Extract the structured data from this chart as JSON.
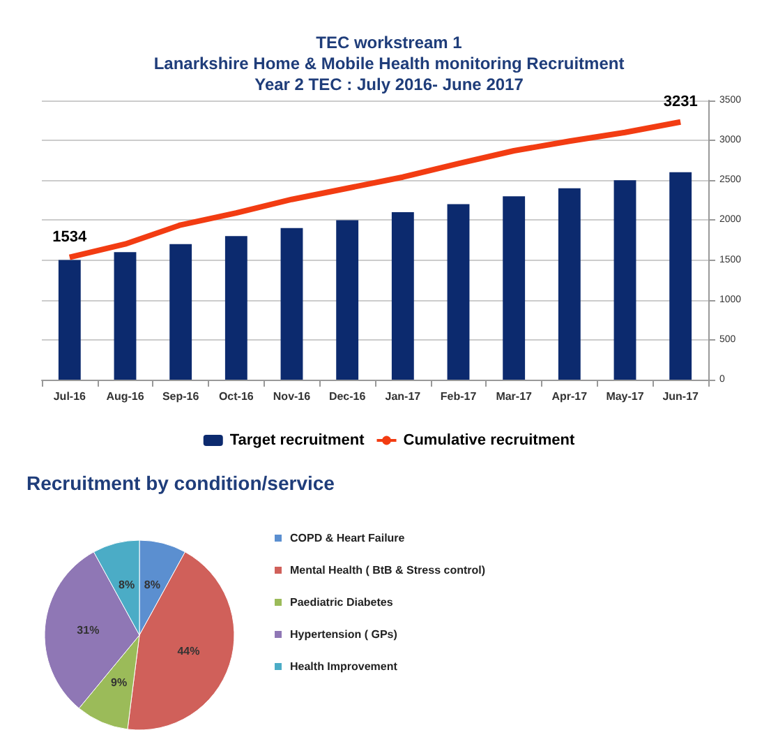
{
  "chart_data": [
    {
      "type": "bar",
      "title": "TEC workstream 1\nLanarkshire Home & Mobile Health monitoring Recruitment\nYear 2 TEC : July 2016- June 2017",
      "categories": [
        "Jul-16",
        "Aug-16",
        "Sep-16",
        "Oct-16",
        "Nov-16",
        "Dec-16",
        "Jan-17",
        "Feb-17",
        "Mar-17",
        "Apr-17",
        "May-17",
        "Jun-17"
      ],
      "series": [
        {
          "name": "Target recruitment",
          "type": "bar",
          "color": "#0c2a6e",
          "values": [
            1500,
            1600,
            1700,
            1800,
            1900,
            2000,
            2100,
            2200,
            2300,
            2400,
            2500,
            2600
          ]
        },
        {
          "name": "Cumulative recruitment",
          "type": "line",
          "color": "#f23c12",
          "marker": "none",
          "values": [
            1534,
            1700,
            1940,
            2090,
            2260,
            2400,
            2540,
            2710,
            2870,
            2990,
            3100,
            3231
          ],
          "value_labels": [
            "1534",
            null,
            null,
            null,
            null,
            null,
            null,
            null,
            null,
            null,
            null,
            "3231"
          ]
        }
      ],
      "ylim": [
        0,
        3500
      ],
      "yticks": [
        0,
        500,
        1000,
        1500,
        2000,
        2500,
        3000,
        3500
      ],
      "grid": "y",
      "legend": "bottom"
    },
    {
      "type": "pie",
      "title": "Recruitment by condition/service",
      "categories": [
        "COPD & Heart Failure",
        "Mental Health ( BtB & Stress control)",
        "Paediatric Diabetes",
        "Hypertension ( GPs)",
        "Health Improvement"
      ],
      "values": [
        8,
        44,
        9,
        31,
        8
      ],
      "colors": [
        "#5b8fd0",
        "#d0605a",
        "#9bbb59",
        "#8f77b5",
        "#4bacc6"
      ],
      "value_labels": [
        "8%",
        "44%",
        "9%",
        "31%",
        "8%"
      ],
      "legend": "right"
    }
  ]
}
